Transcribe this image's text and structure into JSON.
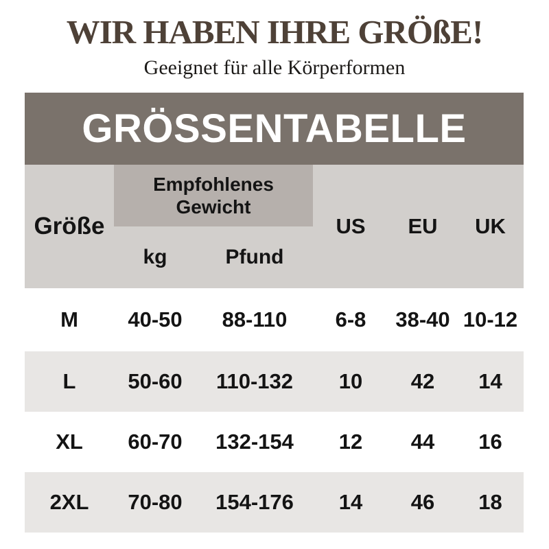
{
  "page": {
    "title": "WIR HABEN IHRE GRÖßE!",
    "subtitle": "Geeignet für alle Körperformen",
    "banner": "GRÖSSENTABELLE"
  },
  "table": {
    "header": {
      "size_label": "Größe",
      "weight_group_label": "Empfohlenes Gewicht",
      "weight_units": [
        "kg",
        "Pfund"
      ],
      "regions": [
        "US",
        "EU",
        "UK"
      ]
    },
    "rows": [
      {
        "size": "M",
        "kg": "40-50",
        "pfund": "88-110",
        "us": "6-8",
        "eu": "38-40",
        "uk": "10-12"
      },
      {
        "size": "L",
        "kg": "50-60",
        "pfund": "110-132",
        "us": "10",
        "eu": "42",
        "uk": "14"
      },
      {
        "size": "XL",
        "kg": "60-70",
        "pfund": "132-154",
        "us": "12",
        "eu": "44",
        "uk": "16"
      },
      {
        "size": "2XL",
        "kg": "70-80",
        "pfund": "154-176",
        "us": "14",
        "eu": "46",
        "uk": "18"
      }
    ]
  },
  "colors": {
    "title_text": "#4e4137",
    "banner_bg": "#7a726b",
    "banner_text": "#ffffff",
    "header_bg": "#d2cfcc",
    "weight_box_bg": "#b6b0ac",
    "row_stripe_bg": "#e8e6e4",
    "table_text": "#141414",
    "page_bg": "#ffffff"
  }
}
